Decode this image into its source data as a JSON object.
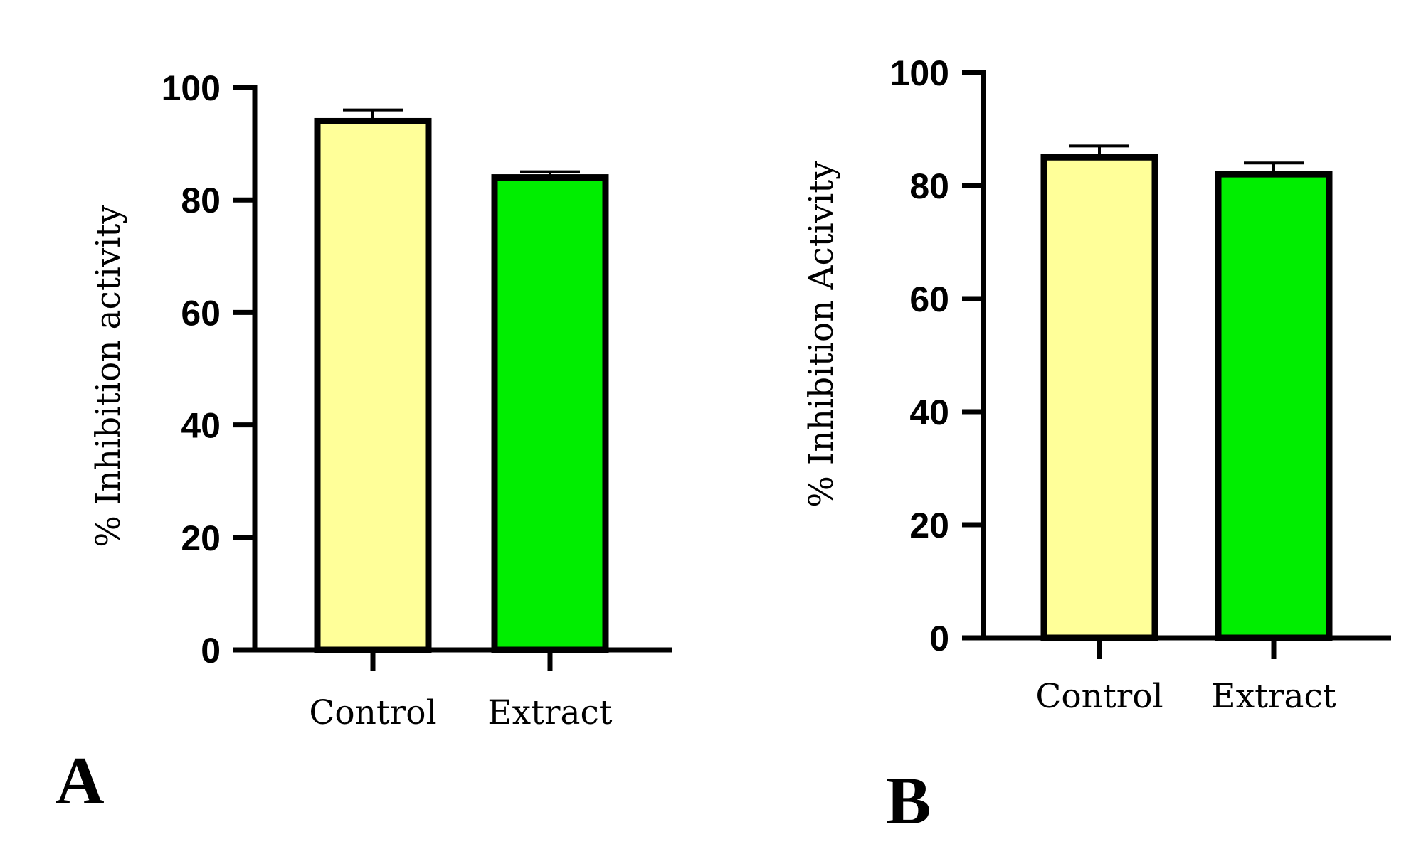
{
  "chart_data": [
    {
      "type": "bar",
      "panel_label": "A",
      "title": "",
      "xlabel": "",
      "ylabel": "% Inhibition activity",
      "ylim": [
        0,
        100
      ],
      "yticks": [
        0,
        20,
        40,
        60,
        80,
        100
      ],
      "categories": [
        "Control",
        "Extract"
      ],
      "values": [
        94,
        84
      ],
      "errors": [
        2,
        1
      ],
      "colors": [
        "#ffff99",
        "#00ee00"
      ]
    },
    {
      "type": "bar",
      "panel_label": "B",
      "title": "",
      "xlabel": "",
      "ylabel": "% Inhibition Activity",
      "ylim": [
        0,
        100
      ],
      "yticks": [
        0,
        20,
        40,
        60,
        80,
        100
      ],
      "categories": [
        "Control",
        "Extract"
      ],
      "values": [
        85,
        82
      ],
      "errors": [
        2,
        2
      ],
      "colors": [
        "#ffff99",
        "#00ee00"
      ]
    }
  ]
}
